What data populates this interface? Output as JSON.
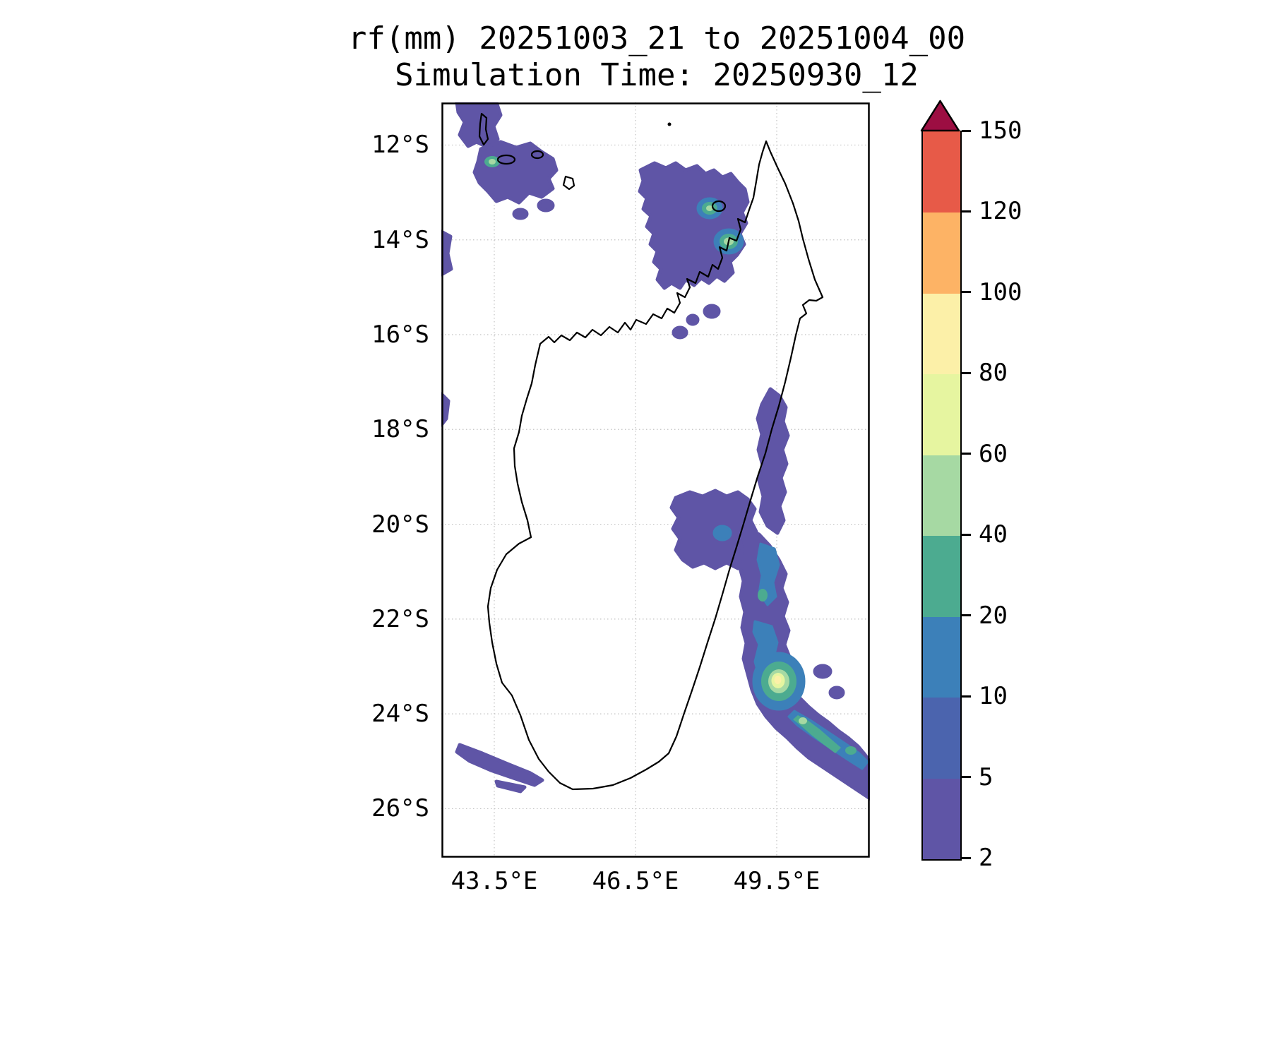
{
  "chart_data": {
    "type": "heatmap",
    "title": "rf(mm) 20251003_21 to 20251004_00",
    "subtitle": "Simulation Time: 20250930_12",
    "variable": "rf",
    "units": "mm",
    "valid_period": "20251003_21 to 20251004_00",
    "simulation_time": "20250930_12",
    "region": "Madagascar and Comoros area",
    "x_axis": {
      "tick_labels": [
        "43.5°E",
        "46.5°E",
        "49.5°E"
      ],
      "tick_values": [
        43.5,
        46.5,
        49.5
      ],
      "range_est": [
        42.4,
        51.5
      ]
    },
    "y_axis": {
      "tick_labels": [
        "12°S",
        "14°S",
        "16°S",
        "18°S",
        "20°S",
        "22°S",
        "24°S",
        "26°S"
      ],
      "tick_values": [
        12,
        14,
        16,
        18,
        20,
        22,
        24,
        26
      ],
      "range_est": [
        11.1,
        27.1
      ]
    },
    "grid": "dotted",
    "colorbar": {
      "orientation": "vertical",
      "position": "right",
      "levels": [
        2,
        5,
        10,
        20,
        40,
        60,
        80,
        100,
        120,
        150
      ],
      "colors": [
        "#5f55a6",
        "#4b64ae",
        "#3c80b9",
        "#4cab90",
        "#a6d9a3",
        "#e6f5a0",
        "#fcf0a8",
        "#fdb365",
        "#e75a48"
      ],
      "over_color": "#9c0e42",
      "extend": "max"
    },
    "features": [
      {
        "area": "Comoros islands cluster (northwest corner)",
        "approx_lat": "11.1-13.3S",
        "approx_lon": "42.5-45.3E",
        "max_band_mm": "20-40"
      },
      {
        "area": "Northern Madagascar around Nosy Be / Antsiranana",
        "approx_lat": "12.5-15.5S",
        "approx_lon": "47.5-49.5E",
        "max_band_mm": "40-60"
      },
      {
        "area": "East coast offshore band",
        "approx_lat": "17-25S",
        "approx_lon": "48-51.5E",
        "max_band_mm": "60-80 core near 23.3S 49.5E"
      },
      {
        "area": "Inland patch east-central",
        "approx_lat": "19.5-21S",
        "approx_lon": "47-48.5E",
        "max_band_mm": "5-10"
      },
      {
        "area": "Southwest offshore sliver",
        "approx_lat": "24.6-25.5S",
        "approx_lon": "42.8-44.5E",
        "max_band_mm": "2-5"
      },
      {
        "area": "West edge slivers at map boundary",
        "approx_lat": "13.8-14.5S and 17-17.8S",
        "approx_lon": "42.4E",
        "max_band_mm": "2-5"
      }
    ]
  }
}
